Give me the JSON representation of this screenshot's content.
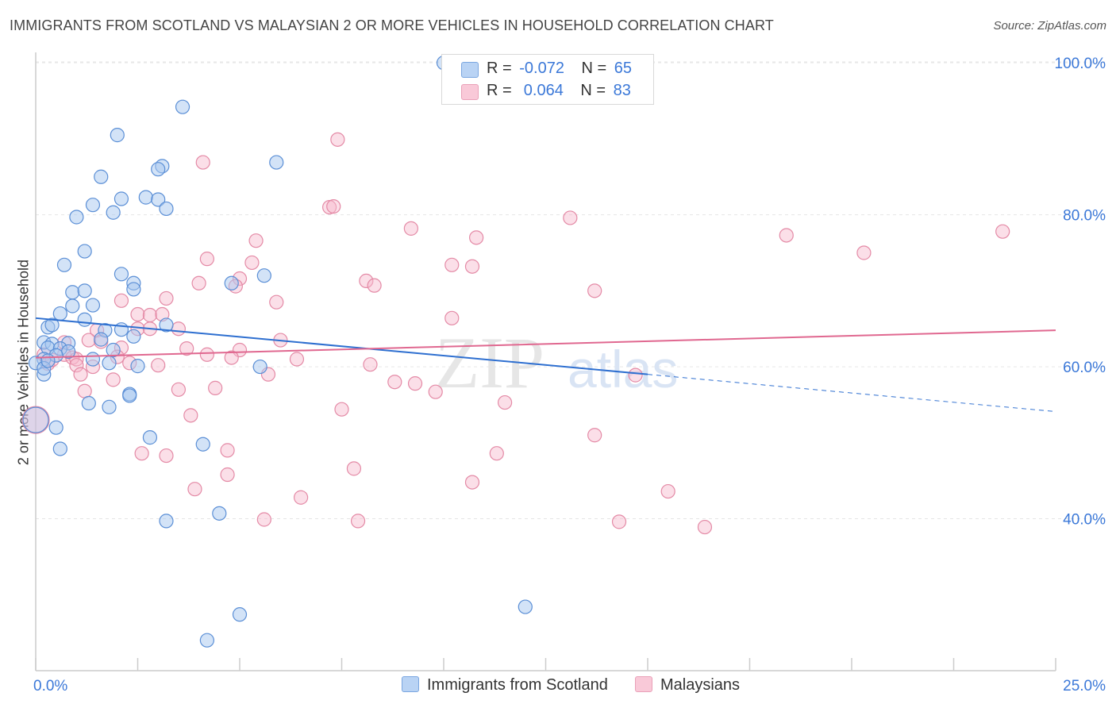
{
  "title": "IMMIGRANTS FROM SCOTLAND VS MALAYSIAN 2 OR MORE VEHICLES IN HOUSEHOLD CORRELATION CHART",
  "source": "Source: ZipAtlas.com",
  "watermark": {
    "zip": "ZIP",
    "atlas": "atlas"
  },
  "legend": {
    "rows": [
      {
        "r_label": "R =",
        "r_value": "-0.072",
        "n_label": "N =",
        "n_value": "65"
      },
      {
        "r_label": "R =",
        "r_value": " 0.064",
        "n_label": "N =",
        "n_value": "83"
      }
    ]
  },
  "colors": {
    "scotland_fill": "#a8c8f0",
    "scotland_stroke": "#5b8fd6",
    "scotland_line": "#2e6fd0",
    "malaysian_fill": "#f6b8cc",
    "malaysian_stroke": "#e48aa6",
    "malaysian_line": "#e06890",
    "axis_value_text": "#3b78d8",
    "grid": "#e6e6e6"
  },
  "chart_data": {
    "type": "scatter",
    "title": "IMMIGRANTS FROM SCOTLAND VS MALAYSIAN 2 OR MORE VEHICLES IN HOUSEHOLD CORRELATION CHART",
    "xlabel": "",
    "ylabel": "2 or more Vehicles in Household",
    "xlim": [
      0,
      25
    ],
    "ylim": [
      20,
      102
    ],
    "x_tick_labels": [
      "0.0%",
      "25.0%"
    ],
    "y_ticks": [
      40,
      60,
      80,
      100
    ],
    "y_tick_labels": [
      "40.0%",
      "60.0%",
      "80.0%",
      "100.0%"
    ],
    "grid": true,
    "legend_position": "top-center",
    "series": [
      {
        "name": "Immigrants from Scotland",
        "r": -0.072,
        "n": 65,
        "trend": {
          "x0": 0,
          "y0": 66.4,
          "x1": 15,
          "y1": 59.0,
          "dashed_to_x": 25,
          "dashed_to_y": 54.1
        },
        "points": [
          [
            10.0,
            100.0
          ],
          [
            3.6,
            94.2
          ],
          [
            2.0,
            90.5
          ],
          [
            3.1,
            86.4
          ],
          [
            3.0,
            86.0
          ],
          [
            5.9,
            86.9
          ],
          [
            1.6,
            85.0
          ],
          [
            2.1,
            82.1
          ],
          [
            2.7,
            82.3
          ],
          [
            3.0,
            82.0
          ],
          [
            1.4,
            81.3
          ],
          [
            1.9,
            80.3
          ],
          [
            3.2,
            80.8
          ],
          [
            1.0,
            79.7
          ],
          [
            1.2,
            75.2
          ],
          [
            0.7,
            73.4
          ],
          [
            2.1,
            72.2
          ],
          [
            5.6,
            72.0
          ],
          [
            2.4,
            71.0
          ],
          [
            4.8,
            71.0
          ],
          [
            0.9,
            69.8
          ],
          [
            1.2,
            70.0
          ],
          [
            2.4,
            70.2
          ],
          [
            0.9,
            68.0
          ],
          [
            1.4,
            68.1
          ],
          [
            0.6,
            67.0
          ],
          [
            1.2,
            66.2
          ],
          [
            0.3,
            65.2
          ],
          [
            0.4,
            65.5
          ],
          [
            1.7,
            64.8
          ],
          [
            3.2,
            65.5
          ],
          [
            2.1,
            64.9
          ],
          [
            2.4,
            64.0
          ],
          [
            0.2,
            63.2
          ],
          [
            0.4,
            63.0
          ],
          [
            0.8,
            63.1
          ],
          [
            1.6,
            63.6
          ],
          [
            0.3,
            62.5
          ],
          [
            0.6,
            62.4
          ],
          [
            0.8,
            62.0
          ],
          [
            1.9,
            62.2
          ],
          [
            0.2,
            61.0
          ],
          [
            0.5,
            61.5
          ],
          [
            1.4,
            61.0
          ],
          [
            1.8,
            60.5
          ],
          [
            2.5,
            60.1
          ],
          [
            0.0,
            60.5
          ],
          [
            0.2,
            59.0
          ],
          [
            0.2,
            59.8
          ],
          [
            5.5,
            60.0
          ],
          [
            2.3,
            56.4
          ],
          [
            2.3,
            56.2
          ],
          [
            1.3,
            55.2
          ],
          [
            1.8,
            54.7
          ],
          [
            0.5,
            52.0
          ],
          [
            0.0,
            53.0
          ],
          [
            2.8,
            50.7
          ],
          [
            4.1,
            49.8
          ],
          [
            0.6,
            49.2
          ],
          [
            3.2,
            39.7
          ],
          [
            4.5,
            40.7
          ],
          [
            12.0,
            28.4
          ],
          [
            5.0,
            27.4
          ],
          [
            4.2,
            24.0
          ],
          [
            0.3,
            60.8
          ]
        ]
      },
      {
        "name": "Malaysians",
        "r": 0.064,
        "n": 83,
        "trend": {
          "x0": 0,
          "y0": 61.2,
          "x1": 25,
          "y1": 64.8
        },
        "points": [
          [
            7.4,
            89.9
          ],
          [
            4.1,
            86.9
          ],
          [
            7.2,
            81.0
          ],
          [
            7.3,
            81.1
          ],
          [
            13.1,
            79.6
          ],
          [
            9.2,
            78.2
          ],
          [
            10.8,
            77.0
          ],
          [
            18.4,
            77.3
          ],
          [
            23.7,
            77.8
          ],
          [
            5.4,
            76.6
          ],
          [
            20.3,
            75.0
          ],
          [
            4.2,
            74.2
          ],
          [
            5.3,
            73.7
          ],
          [
            10.2,
            73.4
          ],
          [
            10.7,
            73.2
          ],
          [
            5.0,
            71.6
          ],
          [
            8.1,
            71.3
          ],
          [
            4.0,
            71.0
          ],
          [
            4.9,
            70.6
          ],
          [
            8.3,
            70.7
          ],
          [
            13.7,
            70.0
          ],
          [
            3.2,
            69.0
          ],
          [
            5.9,
            68.5
          ],
          [
            2.1,
            68.7
          ],
          [
            2.5,
            66.9
          ],
          [
            2.8,
            66.8
          ],
          [
            3.1,
            66.9
          ],
          [
            10.2,
            66.4
          ],
          [
            2.5,
            65.0
          ],
          [
            2.8,
            65.0
          ],
          [
            3.5,
            65.0
          ],
          [
            1.5,
            64.8
          ],
          [
            0.7,
            63.2
          ],
          [
            1.3,
            63.5
          ],
          [
            1.6,
            63.3
          ],
          [
            6.0,
            63.5
          ],
          [
            2.1,
            62.5
          ],
          [
            3.7,
            62.4
          ],
          [
            5.0,
            62.2
          ],
          [
            0.2,
            61.6
          ],
          [
            0.7,
            61.6
          ],
          [
            0.9,
            61.2
          ],
          [
            1.0,
            61.0
          ],
          [
            2.0,
            61.3
          ],
          [
            4.2,
            61.6
          ],
          [
            4.8,
            61.2
          ],
          [
            6.4,
            61.0
          ],
          [
            0.3,
            60.4
          ],
          [
            1.0,
            60.2
          ],
          [
            1.4,
            60.0
          ],
          [
            2.3,
            60.5
          ],
          [
            3.0,
            60.2
          ],
          [
            8.2,
            60.3
          ],
          [
            1.1,
            59.0
          ],
          [
            1.9,
            58.3
          ],
          [
            5.7,
            59.0
          ],
          [
            8.8,
            58.0
          ],
          [
            9.3,
            57.8
          ],
          [
            1.2,
            56.8
          ],
          [
            3.5,
            57.0
          ],
          [
            4.4,
            57.2
          ],
          [
            9.8,
            56.7
          ],
          [
            11.5,
            55.3
          ],
          [
            7.5,
            54.4
          ],
          [
            3.8,
            53.6
          ],
          [
            0.0,
            53.0
          ],
          [
            13.7,
            51.0
          ],
          [
            4.7,
            49.0
          ],
          [
            2.6,
            48.6
          ],
          [
            3.2,
            48.3
          ],
          [
            11.3,
            48.6
          ],
          [
            7.8,
            46.6
          ],
          [
            4.7,
            45.8
          ],
          [
            10.7,
            44.8
          ],
          [
            3.9,
            43.9
          ],
          [
            6.5,
            42.8
          ],
          [
            15.5,
            43.6
          ],
          [
            5.6,
            39.9
          ],
          [
            7.9,
            39.7
          ],
          [
            14.3,
            39.6
          ],
          [
            16.4,
            38.9
          ],
          [
            14.7,
            58.9
          ],
          [
            0.4,
            60.9
          ]
        ]
      }
    ]
  }
}
